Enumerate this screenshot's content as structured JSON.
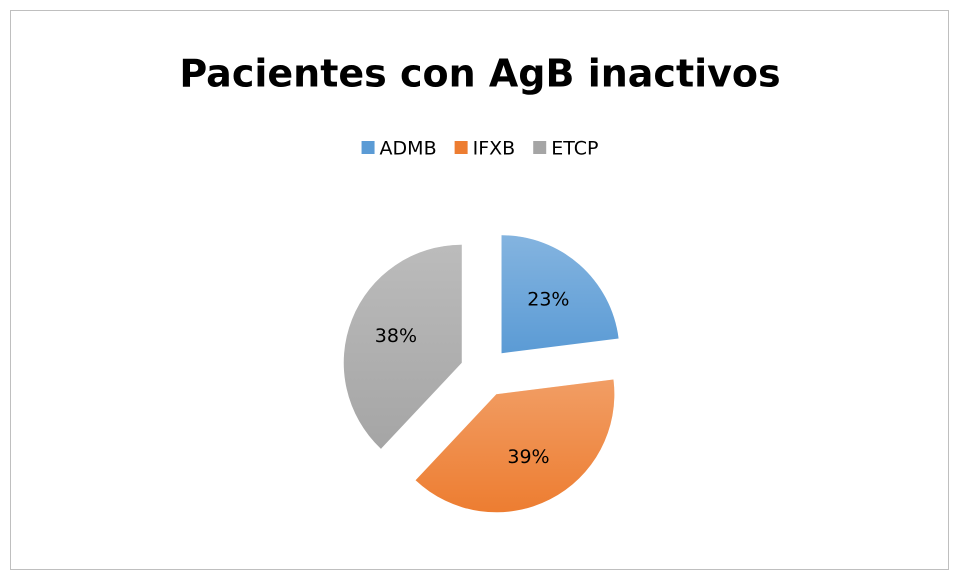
{
  "chart_data": {
    "type": "pie",
    "title": "Pacientes con AgB inactivos",
    "categories": [
      "ADMB",
      "IFXB",
      "ETCP"
    ],
    "values": [
      23,
      39,
      38
    ],
    "value_labels": [
      "23%",
      "39%",
      "38%"
    ],
    "colors": [
      "#5b9bd5",
      "#ed7d31",
      "#a5a5a5"
    ],
    "legend": "top"
  }
}
